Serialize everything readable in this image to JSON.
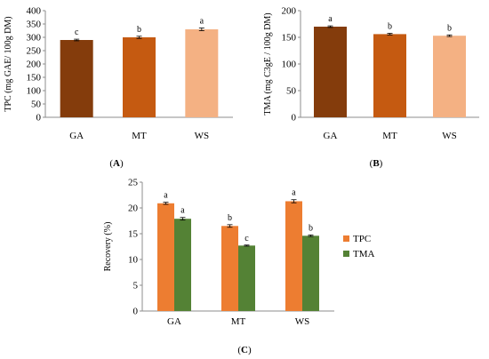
{
  "chart_data": [
    {
      "panel": "(A)",
      "panel_letter": "A",
      "type": "bar",
      "xlabel": "",
      "ylabel": "TPC (mg GAE/ 100g DM)",
      "categories": [
        "GA",
        "MT",
        "WS"
      ],
      "values": [
        290,
        300,
        330
      ],
      "errors": [
        3,
        4,
        5
      ],
      "colors": [
        "#843C0C",
        "#C55A11",
        "#F4B183"
      ],
      "letters": [
        "c",
        "b",
        "a"
      ],
      "ylim": [
        0,
        400
      ],
      "yticks": [
        0,
        50,
        100,
        150,
        200,
        250,
        300,
        350,
        400
      ],
      "grid": false,
      "legend": false
    },
    {
      "panel": "(B)",
      "panel_letter": "B",
      "type": "bar",
      "xlabel": "",
      "ylabel": "TMA (mg C3gE / 100g DM)",
      "categories": [
        "GA",
        "MT",
        "WS"
      ],
      "values": [
        170,
        156,
        153
      ],
      "errors": [
        1.5,
        1.5,
        1.5
      ],
      "colors": [
        "#843C0C",
        "#C55A11",
        "#F4B183"
      ],
      "letters": [
        "a",
        "b",
        "b"
      ],
      "ylim": [
        0,
        200
      ],
      "yticks": [
        0,
        50,
        100,
        150,
        200
      ],
      "grid": false,
      "legend": false
    },
    {
      "panel": "(C)",
      "panel_letter": "C",
      "type": "bar",
      "xlabel": "",
      "ylabel": "Recovery (%)",
      "categories": [
        "GA",
        "MT",
        "WS"
      ],
      "series": [
        {
          "name": "TPC",
          "color": "#ED7D31",
          "values": [
            20.9,
            16.5,
            21.3
          ],
          "errors": [
            0.2,
            0.25,
            0.3
          ],
          "letters": [
            "a",
            "b",
            "a"
          ]
        },
        {
          "name": "TMA",
          "color": "#548235",
          "values": [
            17.9,
            12.7,
            14.6
          ],
          "errors": [
            0.25,
            0.1,
            0.15
          ],
          "letters": [
            "a",
            "c",
            "b"
          ]
        }
      ],
      "ylim": [
        0,
        25
      ],
      "yticks": [
        0,
        5,
        10,
        15,
        20,
        25
      ],
      "grid": false,
      "legend": "right"
    }
  ]
}
